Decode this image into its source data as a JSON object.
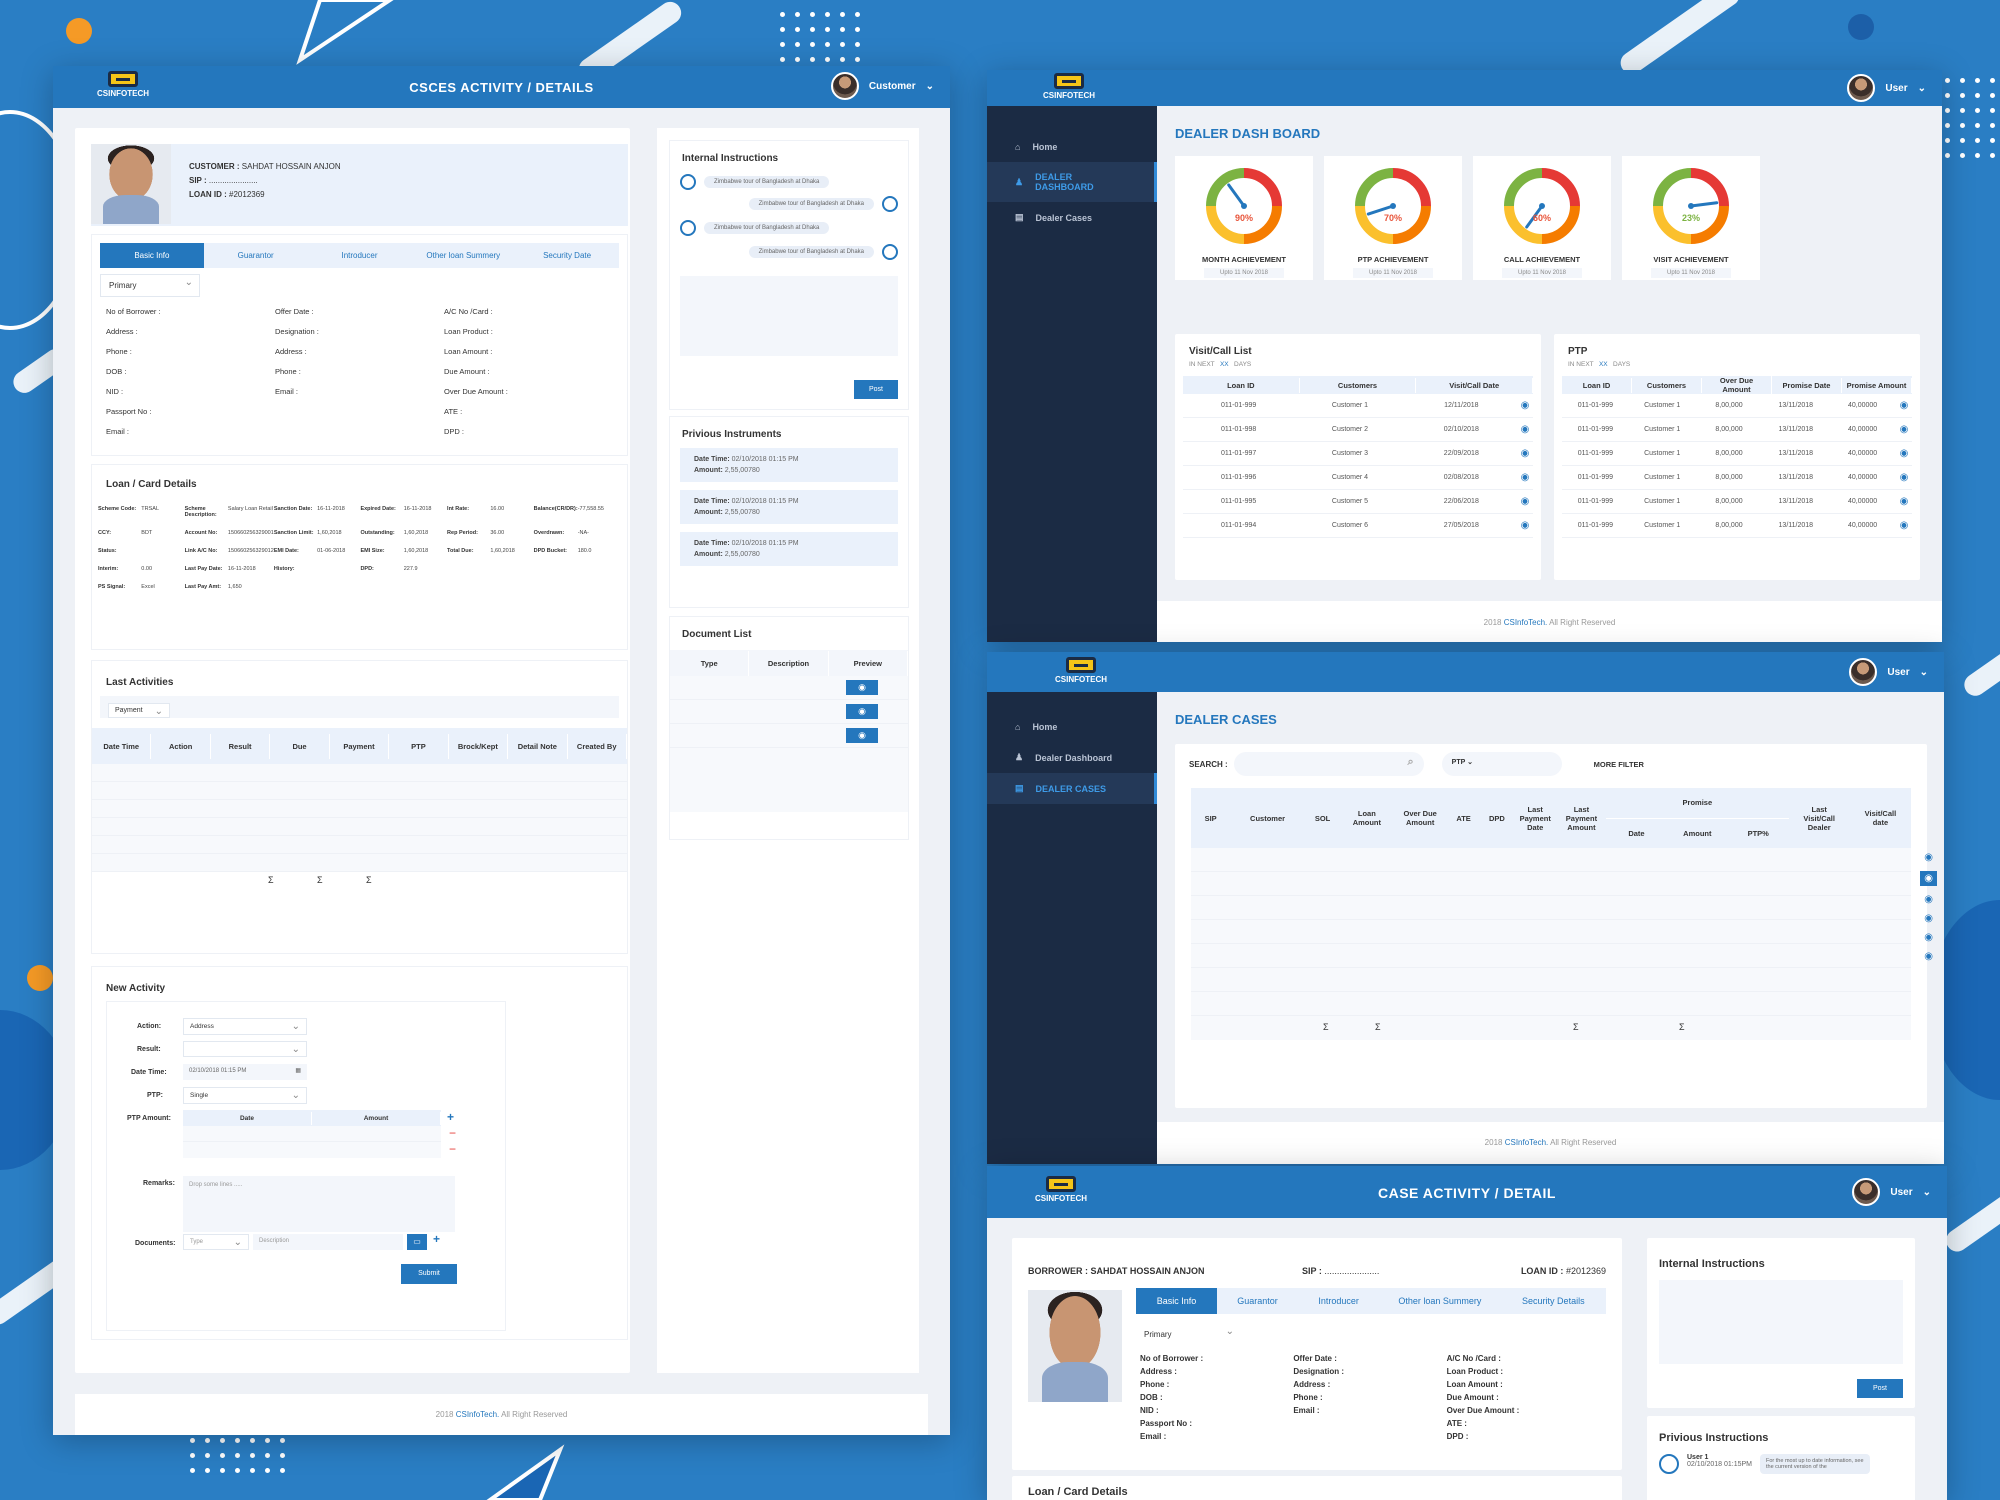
{
  "theme": {
    "primary": "#2477bd",
    "sidebar": "#1b2b44",
    "accent_orange": "#f59a26"
  },
  "left": {
    "title": "CSCES ACTIVITY / DETAILS",
    "user": "Customer",
    "logo": "CSINFOTECH",
    "customer_label": "CUSTOMER :",
    "customer_name": "SAHDAT HOSSAIN ANJON",
    "sip_label": "SIP :",
    "sip_value": "......................",
    "loan_id_label": "LOAN ID :",
    "loan_id": "#2012369",
    "tabs": [
      "Basic Info",
      "Guarantor",
      "Introducer",
      "Other loan Summery",
      "Security Date"
    ],
    "primary_select": "Primary",
    "fields_col1": [
      "No of Borrower :",
      "Address :",
      "Phone :",
      "DOB :",
      "NID :",
      "Passport No :",
      "Email :"
    ],
    "fields_col2": [
      "Offer Date :",
      "Designation :",
      "Address :",
      "Phone :",
      "Email :"
    ],
    "fields_col3": [
      "A/C No /Card :",
      "Loan Product :",
      "Loan Amount :",
      "Due Amount :",
      "Over Due Amount :",
      "ATE :",
      "DPD :"
    ],
    "loan_card_title": "Loan / Card Details",
    "loan_grid": [
      [
        "Scheme Code:",
        "TRSAL",
        "Scheme Description:",
        "Salary Loan Retail",
        "Sanction Date:",
        "16-11-2018",
        "Expired Date:",
        "16-11-2018",
        "Int Rate:",
        "16.00",
        "Balance(CR/DR):",
        "-77,558.55"
      ],
      [
        "CCY:",
        "BDT",
        "Account No:",
        "150660256329001",
        "Sanction Limit:",
        "1,60,2018",
        "Outstanding:",
        "1,60,2018",
        "Rep Period:",
        "36.00",
        "Overdrawn:",
        "-NA-"
      ],
      [
        "Status:",
        "",
        "Link A/C No:",
        "150660256329012",
        "EMI Date:",
        "01-06-2018",
        "EMI Size:",
        "1,60,2018",
        "Total Due:",
        "1,60,2018",
        "DPD Bucket:",
        "180.0"
      ],
      [
        "Interim:",
        "0.00",
        "Last Pay Date:",
        "16-11-2018",
        "History:",
        "",
        "DPD:",
        "227.9",
        "",
        "",
        "",
        ""
      ],
      [
        "PS Signal:",
        "Excel",
        "Last Pay Amt:",
        "1,650",
        "",
        "",
        "",
        "",
        "",
        "",
        "",
        ""
      ]
    ],
    "last_activities_title": "Last Activities",
    "payment_select": "Payment",
    "activity_headers": [
      "Date  Time",
      "Action",
      "Result",
      "Due",
      "Payment",
      "PTP",
      "Brock/Kept",
      "Detail Note",
      "Created By"
    ],
    "sigma": "Σ",
    "new_activity_title": "New Activity",
    "action_label": "Action:",
    "action_value": "Address",
    "result_label": "Result:",
    "datetime_label": "Date Time:",
    "datetime_value": "02/10/2018   01:15 PM",
    "ptp_label": "PTP:",
    "ptp_value": "Single",
    "ptp_amount_label": "PTP Amount:",
    "ptp_cols": [
      "Date",
      "Amount"
    ],
    "remarks_label": "Remarks:",
    "remarks_placeholder": "Drop some lines .....",
    "documents_label": "Documents:",
    "doc_type": "Type",
    "doc_desc": "Description",
    "submit": "Submit",
    "internal_title": "Internal Instructions",
    "bubbles": [
      "Zimbabwe tour of Bangladesh at Dhaka",
      "Zimbabwe tour of Bangladesh at Dhaka",
      "Zimbabwe tour of Bangladesh at Dhaka",
      "Zimbabwe tour of Bangladesh at Dhaka"
    ],
    "post": "Post",
    "prev_instruments_title": "Privious Instruments",
    "instruments": [
      {
        "dt_label": "Date Time:",
        "dt": "02/10/2018    01:15 PM",
        "amt_label": "Amount:",
        "amt": "2,55,00780"
      },
      {
        "dt_label": "Date Time:",
        "dt": "02/10/2018    01:15 PM",
        "amt_label": "Amount:",
        "amt": "2,55,00780"
      },
      {
        "dt_label": "Date Time:",
        "dt": "02/10/2018    01:15 PM",
        "amt_label": "Amount:",
        "amt": "2,55,00780"
      }
    ],
    "doc_list_title": "Document List",
    "doc_headers": [
      "Type",
      "Description",
      "Preview"
    ],
    "footer_year": "2018",
    "footer_brand": "CSInfoTech.",
    "footer_rest": "All Right Reserved"
  },
  "dash": {
    "user": "User",
    "title": "DEALER DASH BOARD",
    "nav": [
      "Home",
      "DEALER DASHBOARD",
      "Dealer Cases"
    ],
    "gauges": [
      {
        "label": "MONTH ACHIEVEMENT",
        "value": "90%",
        "pct": 0.9,
        "sub": "Upto 11 Nov 2018",
        "color": "#e8543a"
      },
      {
        "label": "PTP ACHIEVEMENT",
        "value": "70%",
        "pct": 0.7,
        "sub": "Upto 11 Nov 2018",
        "color": "#e8543a"
      },
      {
        "label": "CALL ACHIEVEMENT",
        "value": "60%",
        "pct": 0.6,
        "sub": "Upto 11 Nov 2018",
        "color": "#e8543a"
      },
      {
        "label": "VISIT ACHIEVEMENT",
        "value": "23%",
        "pct": 0.23,
        "sub": "Upto 11 Nov 2018",
        "color": "#7cb342"
      }
    ],
    "visit_title": "Visit/Call List",
    "in_next": "IN NEXT",
    "xx": "XX",
    "days": "DAYS",
    "visit_headers": [
      "Loan ID",
      "Customers",
      "Visit/Call Date"
    ],
    "visit_rows": [
      [
        "011-01-999",
        "Customer 1",
        "12/11/2018"
      ],
      [
        "011-01-998",
        "Customer 2",
        "02/10/2018"
      ],
      [
        "011-01-997",
        "Customer 3",
        "22/09/2018"
      ],
      [
        "011-01-996",
        "Customer 4",
        "02/08/2018"
      ],
      [
        "011-01-995",
        "Customer 5",
        "22/06/2018"
      ],
      [
        "011-01-994",
        "Customer 6",
        "27/05/2018"
      ]
    ],
    "ptp_title": "PTP",
    "ptp_headers": [
      "Loan ID",
      "Customers",
      "Over Due Amount",
      "Promise Date",
      "Promise Amount"
    ],
    "ptp_rows": [
      [
        "011-01-999",
        "Customer 1",
        "8,00,000",
        "13/11/2018",
        "40,00000"
      ],
      [
        "011-01-999",
        "Customer 1",
        "8,00,000",
        "13/11/2018",
        "40,00000"
      ],
      [
        "011-01-999",
        "Customer 1",
        "8,00,000",
        "13/11/2018",
        "40,00000"
      ],
      [
        "011-01-999",
        "Customer 1",
        "8,00,000",
        "13/11/2018",
        "40,00000"
      ],
      [
        "011-01-999",
        "Customer 1",
        "8,00,000",
        "13/11/2018",
        "40,00000"
      ],
      [
        "011-01-999",
        "Customer 1",
        "8,00,000",
        "13/11/2018",
        "40,00000"
      ]
    ],
    "footer_year": "2018",
    "footer_brand": "CSInfoTech.",
    "footer_rest": "All Right Reserved"
  },
  "cases": {
    "user": "User",
    "title": "DEALER CASES",
    "nav": [
      "Home",
      "Dealer Dashboard",
      "DEALER CASES"
    ],
    "search_label": "SEARCH :",
    "ptp_select": "PTP",
    "more_filter": "MORE FILTER",
    "headers": [
      "SIP",
      "Customer",
      "SOL",
      "Loan Amount",
      "Over Due Amount",
      "ATE",
      "DPD",
      "Last Payment Date",
      "Last Payment Amount",
      "Promise",
      "Last Visit/Call Dealer",
      "Visit/Call date"
    ],
    "promise_sub": [
      "Date",
      "Amount",
      "PTP%"
    ],
    "sigma": "Σ",
    "footer_year": "2018",
    "footer_brand": "CSInfoTech.",
    "footer_rest": "All Right Reserved"
  },
  "detail": {
    "title": "CASE ACTIVITY / DETAIL",
    "user": "User",
    "borrower_label": "BORROWER :",
    "borrower_name": "SAHDAT HOSSAIN ANJON",
    "sip_label": "SIP :",
    "sip_value": "......................",
    "loan_id_label": "LOAN ID :",
    "loan_id": "#2012369",
    "tabs": [
      "Basic Info",
      "Guarantor",
      "Introducer",
      "Other loan Summery",
      "Security Details"
    ],
    "primary_select": "Primary",
    "col1": [
      "No of Borrower :",
      "Address :",
      "Phone :",
      "DOB :",
      "NID :",
      "Passport No :",
      "Email :"
    ],
    "col2": [
      "Offer Date :",
      "Designation :",
      "Address :",
      "Phone :",
      "Email :"
    ],
    "col3": [
      "A/C No /Card :",
      "Loan Product :",
      "Loan Amount :",
      "Due Amount :",
      "Over Due Amount :",
      "ATE :",
      "DPD :"
    ],
    "loan_card_title": "Loan / Card Details",
    "internal_title": "Internal Instructions",
    "post": "Post",
    "prev_title": "Privious Instructions",
    "prev_user": "User 1",
    "prev_time": "02/10/2018   01:15PM",
    "prev_text": "For the most up to date information, see the current version of the"
  }
}
